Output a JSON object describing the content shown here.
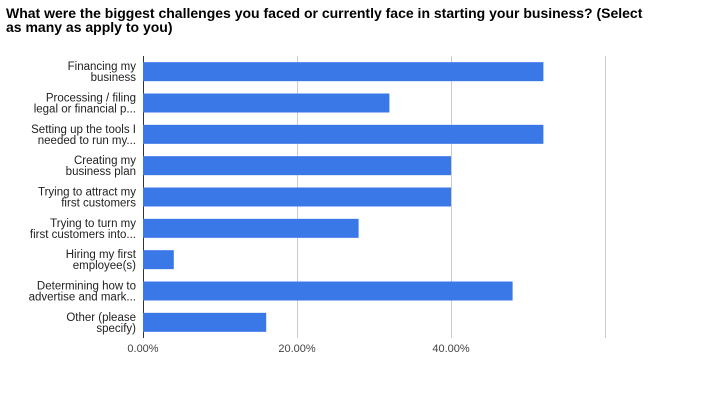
{
  "chart_data": {
    "type": "bar",
    "orientation": "horizontal",
    "title": "What were the biggest challenges you faced or currently face in starting your business? (Select as many as apply to you)",
    "categories": [
      [
        "Financing my",
        "business"
      ],
      [
        "Processing / filing",
        "legal or financial p..."
      ],
      [
        "Setting up the tools I",
        "needed to run my..."
      ],
      [
        "Creating my",
        "business plan"
      ],
      [
        "Trying to attract my",
        "first customers"
      ],
      [
        "Trying to turn my",
        "first customers into..."
      ],
      [
        "Hiring my first",
        "employee(s)"
      ],
      [
        "Determining how to",
        "advertise and mark..."
      ],
      [
        "Other (please",
        "specify)"
      ]
    ],
    "values": [
      0.52,
      0.32,
      0.52,
      0.4,
      0.4,
      0.28,
      0.04,
      0.48,
      0.16
    ],
    "xlim": [
      0,
      0.6
    ],
    "ticks": [
      0,
      0.2,
      0.4,
      0.6
    ],
    "tick_labels": [
      "0.00%",
      "20.00%",
      "40.00%",
      ""
    ],
    "bar_color": "#3b78e7",
    "grid": true,
    "legend": "none"
  }
}
